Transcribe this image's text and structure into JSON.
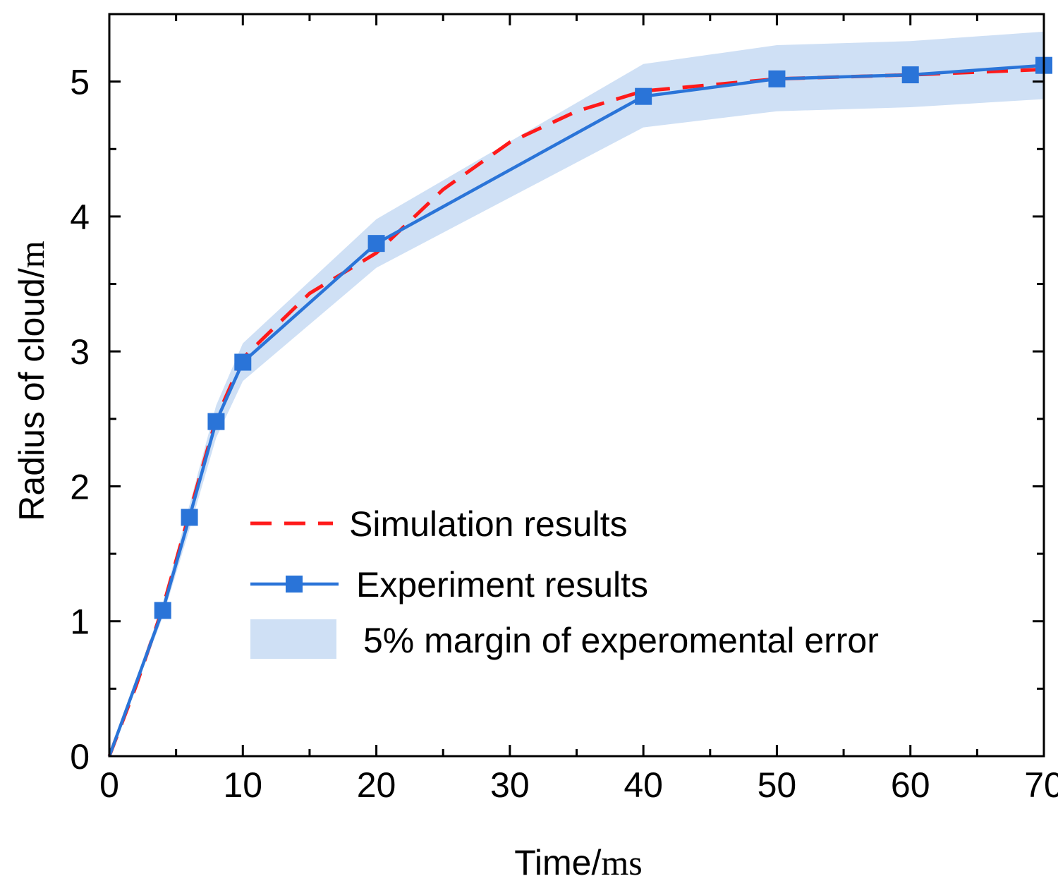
{
  "chart_data": {
    "type": "line",
    "title": "",
    "xlabel": "Time/",
    "xlabel_unit": "ms",
    "ylabel": "Radius of cloud/",
    "ylabel_unit": "m",
    "xlim": [
      0,
      70
    ],
    "ylim": [
      0,
      5.5
    ],
    "x_ticks": [
      0,
      10,
      20,
      30,
      40,
      50,
      60,
      70
    ],
    "y_ticks": [
      0,
      1,
      2,
      3,
      4,
      5
    ],
    "x_tick_labels": [
      "0",
      "10",
      "20",
      "30",
      "40",
      "50",
      "60",
      "70"
    ],
    "y_tick_labels": [
      "0",
      "1",
      "2",
      "3",
      "4",
      "5"
    ],
    "grid": false,
    "legend_position": "center-right",
    "series": [
      {
        "name": "Simulation results",
        "style": "dashed",
        "color": "#ff1a1a",
        "x": [
          0,
          2,
          4,
          6,
          8,
          10,
          15,
          20,
          25,
          30,
          35,
          40,
          50,
          60,
          70
        ],
        "y": [
          0,
          0.52,
          1.1,
          1.8,
          2.5,
          2.95,
          3.43,
          3.73,
          4.2,
          4.55,
          4.78,
          4.93,
          5.02,
          5.05,
          5.09
        ]
      },
      {
        "name": "Experiment results",
        "style": "solid-square-markers",
        "color": "#2a74d8",
        "x": [
          0,
          4,
          6,
          8,
          10,
          20,
          40,
          50,
          60,
          70
        ],
        "y": [
          0,
          1.08,
          1.77,
          2.48,
          2.92,
          3.8,
          4.89,
          5.02,
          5.05,
          5.12
        ]
      },
      {
        "name": "5% margin of experomental error",
        "style": "band",
        "color": "#cfe0f5",
        "x": [
          0,
          4,
          6,
          8,
          10,
          20,
          40,
          50,
          60,
          70
        ],
        "lower": [
          0,
          1.03,
          1.68,
          2.36,
          2.78,
          3.62,
          4.66,
          4.78,
          4.81,
          4.87
        ],
        "upper": [
          0,
          1.13,
          1.86,
          2.6,
          3.06,
          3.98,
          5.13,
          5.27,
          5.3,
          5.37
        ]
      }
    ]
  }
}
